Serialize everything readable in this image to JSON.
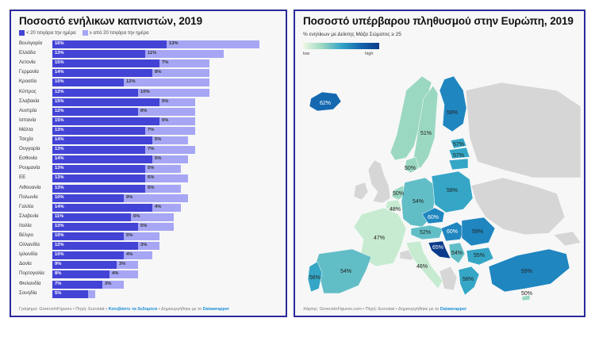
{
  "left_panel": {
    "title": "Ποσοστό ενήλικων καπνιστών, 2019",
    "legend": [
      {
        "label": "< 20 τσιγάρα την ημέρα",
        "color": "#4343d6"
      },
      {
        "label": "≥ από 20 τσιγάρα την ημέρα",
        "color": "#a6a6f5"
      }
    ],
    "footer": {
      "prefix": "Γράφημα: GreeceInFigures • Πηγή: Eurostat • ",
      "link": "Κατεβάστε τα δεδομένα",
      "middle": " • Δημιουργήθηκε με το ",
      "tool": "Datawrapper"
    }
  },
  "right_panel": {
    "title": "Ποσοστό υπέρβαρου πληθυσμού στην Ευρώπη, 2019",
    "subtitle": "% ενηλίκων με Δείκτης Μάζα Σώματος ≥ 25",
    "scale_low": "low",
    "scale_high": "high",
    "footer": {
      "prefix": "Χάρτης: GreeceInFigures.com • Πηγή: Eurostat • Δημιουργήθηκε με το ",
      "tool": "Datawrapper"
    }
  },
  "chart_data": [
    {
      "type": "bar",
      "orientation": "horizontal",
      "stacked": true,
      "title": "Ποσοστό ενήλικων καπνιστών, 2019",
      "legend_position": "top-left",
      "categories": [
        "Βουλγαρία",
        "Ελλάδα",
        "Λετονία",
        "Γερμανία",
        "Κροατία",
        "Κύπρος",
        "Σλοβακία",
        "Αυστρία",
        "Ισπανία",
        "Μάλτα",
        "Τσεχία",
        "Ουγγαρία",
        "Εσθονία",
        "Ρουμανία",
        "ΕΕ",
        "Λιθουανία",
        "Πολωνία",
        "Γαλλία",
        "Σλοβενία",
        "Ιταλία",
        "Βέλγιο",
        "Ολλανδία",
        "Ιρλανδία",
        "Δανία",
        "Πορτογαλία",
        "Φινλανδία",
        "Σουηδία"
      ],
      "series": [
        {
          "name": "< 20 τσιγάρα την ημέρα",
          "values": [
            16,
            13,
            15,
            14,
            10,
            12,
            15,
            12,
            15,
            13,
            14,
            13,
            14,
            13,
            13,
            13,
            10,
            14,
            11,
            12,
            10,
            12,
            10,
            9,
            8,
            7,
            5
          ]
        },
        {
          "name": "≥ από 20 τσιγάρα την ημέρα",
          "values": [
            13,
            11,
            7,
            8,
            12,
            10,
            5,
            8,
            5,
            7,
            5,
            7,
            5,
            5,
            6,
            5,
            9,
            4,
            6,
            5,
            5,
            3,
            4,
            3,
            4,
            3,
            1
          ]
        }
      ],
      "value_labels_hidden_for": [
        {
          "series": 1,
          "category": "Σουηδία"
        }
      ],
      "unit": "%"
    },
    {
      "type": "choropleth",
      "title": "Ποσοστό υπέρβαρου πληθυσμού στην Ευρώπη, 2019",
      "subtitle": "% ενηλίκων με Δείκτης Μάζα Σώματος ≥ 25",
      "color_scale": {
        "low_label": "low",
        "high_label": "high",
        "low_color": "#edf8e4",
        "high_color": "#0b3b8a"
      },
      "regions": [
        {
          "name": "Iceland",
          "value": 62,
          "label": "62%"
        },
        {
          "name": "Norway",
          "value": 51,
          "label": null
        },
        {
          "name": "Sweden",
          "value": 51,
          "label": "51%"
        },
        {
          "name": "Finland",
          "value": 59,
          "label": "59%"
        },
        {
          "name": "Estonia",
          "value": 57,
          "label": "57%"
        },
        {
          "name": "Latvia",
          "value": 57,
          "label": "57%"
        },
        {
          "name": "Lithuania",
          "value": 57,
          "label": null
        },
        {
          "name": "Denmark",
          "value": 50,
          "label": "50%"
        },
        {
          "name": "Netherlands",
          "value": 50,
          "label": "50%"
        },
        {
          "name": "Belgium",
          "value": 48,
          "label": "48%"
        },
        {
          "name": "Germany",
          "value": 54,
          "label": "54%"
        },
        {
          "name": "Poland",
          "value": 58,
          "label": "58%"
        },
        {
          "name": "Czechia",
          "value": 60,
          "label": "60%"
        },
        {
          "name": "Austria",
          "value": 52,
          "label": "52%"
        },
        {
          "name": "Hungary",
          "value": 60,
          "label": "60%"
        },
        {
          "name": "Croatia",
          "value": 65,
          "label": "65%"
        },
        {
          "name": "Serbia",
          "value": 54,
          "label": "54%"
        },
        {
          "name": "Romania",
          "value": 59,
          "label": "59%"
        },
        {
          "name": "Bulgaria",
          "value": 55,
          "label": "55%"
        },
        {
          "name": "Greece",
          "value": 58,
          "label": "58%"
        },
        {
          "name": "Turkey",
          "value": 59,
          "label": "59%"
        },
        {
          "name": "Cyprus",
          "value": 50,
          "label": "50%"
        },
        {
          "name": "France",
          "value": 47,
          "label": "47%"
        },
        {
          "name": "Italy",
          "value": 46,
          "label": "46%"
        },
        {
          "name": "Spain",
          "value": 54,
          "label": "54%"
        },
        {
          "name": "Portugal",
          "value": 56,
          "label": "56%"
        }
      ]
    }
  ]
}
